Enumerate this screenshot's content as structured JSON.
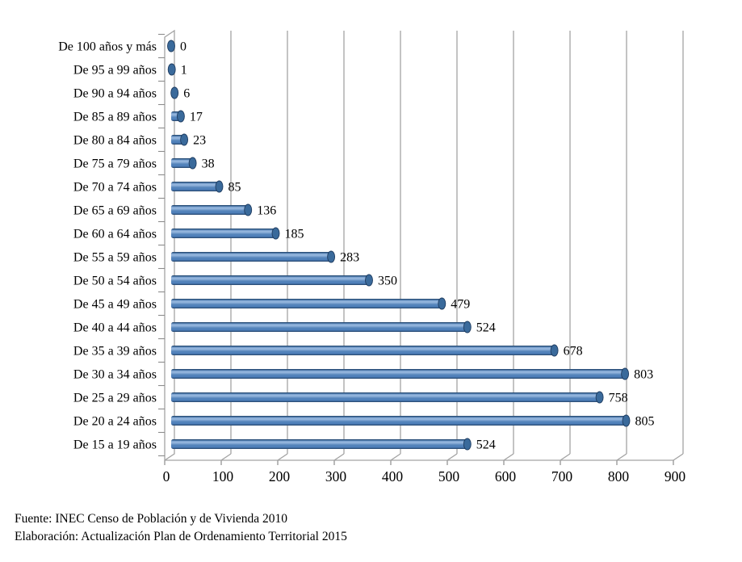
{
  "chart_data": {
    "type": "bar",
    "orientation": "horizontal",
    "style": "3d-cylinder",
    "title": "",
    "categories": [
      "De 100 años y más",
      "De 95 a 99 años",
      "De 90 a 94 años",
      "De 85 a 89 años",
      "De 80 a 84 años",
      "De 75 a 79 años",
      "De 70 a 74 años",
      "De 65 a 69 años",
      "De 60 a 64 años",
      "De 55 a 59 años",
      "De 50 a 54 años",
      "De 45 a 49 años",
      "De 40 a 44 años",
      "De 35 a 39 años",
      "De 30 a 34 años",
      "De 25 a 29 años",
      "De 20 a 24 años",
      "De 15 a 19 años"
    ],
    "values": [
      0,
      1,
      6,
      17,
      23,
      38,
      85,
      136,
      185,
      283,
      350,
      479,
      524,
      678,
      803,
      758,
      805,
      524
    ],
    "data_labels": [
      0,
      1,
      6,
      17,
      23,
      38,
      85,
      136,
      185,
      283,
      350,
      479,
      524,
      678,
      803,
      758,
      805,
      524
    ],
    "x_ticks": [
      0,
      100,
      200,
      300,
      400,
      500,
      600,
      700,
      800,
      900
    ],
    "xlim": [
      0,
      900
    ],
    "xlabel": "",
    "ylabel": "",
    "grid": true,
    "legend": false,
    "colors": {
      "bar_main": "#4F81BD",
      "bar_highlight": "#9ABADF",
      "bar_dark_edge": "#1F3C60",
      "bar_cap": "#3A6A9B",
      "gridline": "#A3A3A3",
      "axis_line": "#8C8C8C",
      "text": "#000000"
    }
  },
  "footer": {
    "source_line": "Fuente: INEC Censo de Población y de Vivienda 2010",
    "elaboration_line": "Elaboración: Actualización Plan de Ordenamiento Territorial 2015"
  }
}
